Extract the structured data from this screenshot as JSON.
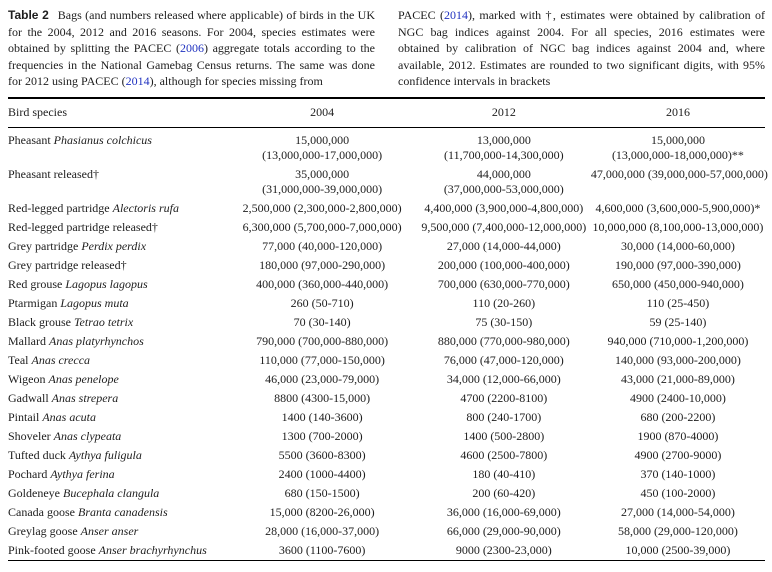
{
  "colors": {
    "link_blue": "#2133c0",
    "text": "#1d1d1d"
  },
  "caption": {
    "label": "Table 2",
    "left_segments": [
      {
        "text": "Bags (and numbers released where applicable) of birds in the UK for the 2004, 2012 and 2016 seasons. For 2004, species estimates were obtained by splitting the PACEC (",
        "link": false
      },
      {
        "text": "2006",
        "link": true
      },
      {
        "text": ") aggregate totals according to the frequencies in the National Gamebag Census returns. The same was done for 2012 using PACEC (",
        "link": false
      },
      {
        "text": "2014",
        "link": true
      },
      {
        "text": "), although for species missing from",
        "link": false
      }
    ],
    "right_segments": [
      {
        "text": "PACEC (",
        "link": false
      },
      {
        "text": "2014",
        "link": true
      },
      {
        "text": "), marked with †, estimates were obtained by calibration of NGC bag indices against 2004. For all species, 2016 estimates were obtained by calibration of NGC bag indices against 2004 and, where available, 2012. Estimates are rounded to two significant digits, with 95% confidence intervals in brackets",
        "link": false
      }
    ]
  },
  "table": {
    "headers": [
      "Bird species",
      "2004",
      "2012",
      "2016"
    ],
    "rows": [
      {
        "common": "Pheasant",
        "sci": "Phasianus colchicus",
        "values": [
          [
            "15,000,000",
            "(13,000,000-17,000,000)"
          ],
          [
            "13,000,000",
            "(11,700,000-14,300,000)"
          ],
          [
            "15,000,000",
            "(13,000,000-18,000,000)**"
          ]
        ]
      },
      {
        "common": "Pheasant released†",
        "sci": "",
        "values": [
          [
            "35,000,000",
            "(31,000,000-39,000,000)"
          ],
          [
            "44,000,000",
            "(37,000,000-53,000,000)"
          ],
          [
            "47,000,000 (39,000,000-57,000,000)"
          ]
        ]
      },
      {
        "common": "Red-legged partridge",
        "sci": "Alectoris rufa",
        "values": [
          [
            "2,500,000 (2,300,000-2,800,000)"
          ],
          [
            "4,400,000 (3,900,000-4,800,000)"
          ],
          [
            "4,600,000 (3,600,000-5,900,000)*"
          ]
        ]
      },
      {
        "common": "Red-legged partridge released†",
        "sci": "",
        "values": [
          [
            "6,300,000 (5,700,000-7,000,000)"
          ],
          [
            "9,500,000 (7,400,000-12,000,000)"
          ],
          [
            "10,000,000 (8,100,000-13,000,000)"
          ]
        ]
      },
      {
        "common": "Grey partridge",
        "sci": "Perdix perdix",
        "values": [
          [
            "77,000 (40,000-120,000)"
          ],
          [
            "27,000 (14,000-44,000)"
          ],
          [
            "30,000 (14,000-60,000)"
          ]
        ]
      },
      {
        "common": "Grey partridge released†",
        "sci": "",
        "values": [
          [
            "180,000 (97,000-290,000)"
          ],
          [
            "200,000 (100,000-400,000)"
          ],
          [
            "190,000 (97,000-390,000)"
          ]
        ]
      },
      {
        "common": "Red grouse",
        "sci": "Lagopus lagopus",
        "values": [
          [
            "400,000 (360,000-440,000)"
          ],
          [
            "700,000 (630,000-770,000)"
          ],
          [
            "650,000 (450,000-940,000)"
          ]
        ]
      },
      {
        "common": "Ptarmigan",
        "sci": "Lagopus muta",
        "values": [
          [
            "260 (50-710)"
          ],
          [
            "110 (20-260)"
          ],
          [
            "110 (25-450)"
          ]
        ]
      },
      {
        "common": "Black grouse",
        "sci": "Tetrao tetrix",
        "values": [
          [
            "70 (30-140)"
          ],
          [
            "75 (30-150)"
          ],
          [
            "59 (25-140)"
          ]
        ]
      },
      {
        "common": "Mallard",
        "sci": "Anas platyrhynchos",
        "values": [
          [
            "790,000 (700,000-880,000)"
          ],
          [
            "880,000 (770,000-980,000)"
          ],
          [
            "940,000 (710,000-1,200,000)"
          ]
        ]
      },
      {
        "common": "Teal",
        "sci": "Anas crecca",
        "values": [
          [
            "110,000 (77,000-150,000)"
          ],
          [
            "76,000 (47,000-120,000)"
          ],
          [
            "140,000 (93,000-200,000)"
          ]
        ]
      },
      {
        "common": "Wigeon",
        "sci": "Anas penelope",
        "values": [
          [
            "46,000 (23,000-79,000)"
          ],
          [
            "34,000 (12,000-66,000)"
          ],
          [
            "43,000 (21,000-89,000)"
          ]
        ]
      },
      {
        "common": "Gadwall",
        "sci": "Anas strepera",
        "values": [
          [
            "8800 (4300-15,000)"
          ],
          [
            "4700 (2200-8100)"
          ],
          [
            "4900 (2400-10,000)"
          ]
        ]
      },
      {
        "common": "Pintail",
        "sci": "Anas acuta",
        "values": [
          [
            "1400 (140-3600)"
          ],
          [
            "800 (240-1700)"
          ],
          [
            "680 (200-2200)"
          ]
        ]
      },
      {
        "common": "Shoveler",
        "sci": "Anas clypeata",
        "values": [
          [
            "1300 (700-2000)"
          ],
          [
            "1400 (500-2800)"
          ],
          [
            "1900 (870-4000)"
          ]
        ]
      },
      {
        "common": "Tufted duck",
        "sci": "Aythya fuligula",
        "values": [
          [
            "5500 (3600-8300)"
          ],
          [
            "4600 (2500-7800)"
          ],
          [
            "4900 (2700-9000)"
          ]
        ]
      },
      {
        "common": "Pochard",
        "sci": "Aythya ferina",
        "values": [
          [
            "2400 (1000-4400)"
          ],
          [
            "180 (40-410)"
          ],
          [
            "370 (140-1000)"
          ]
        ]
      },
      {
        "common": "Goldeneye",
        "sci": "Bucephala clangula",
        "values": [
          [
            "680 (150-1500)"
          ],
          [
            "200 (60-420)"
          ],
          [
            "450 (100-2000)"
          ]
        ]
      },
      {
        "common": "Canada goose",
        "sci": "Branta canadensis",
        "values": [
          [
            "15,000 (8200-26,000)"
          ],
          [
            "36,000 (16,000-69,000)"
          ],
          [
            "27,000 (14,000-54,000)"
          ]
        ]
      },
      {
        "common": "Greylag goose",
        "sci": "Anser anser",
        "values": [
          [
            "28,000 (16,000-37,000)"
          ],
          [
            "66,000 (29,000-90,000)"
          ],
          [
            "58,000 (29,000-120,000)"
          ]
        ]
      },
      {
        "common": "Pink-footed goose",
        "sci": "Anser brachyrhynchus",
        "values": [
          [
            "3600 (1100-7600)"
          ],
          [
            "9000 (2300-23,000)"
          ],
          [
            "10,000 (2500-39,000)"
          ]
        ]
      }
    ]
  }
}
